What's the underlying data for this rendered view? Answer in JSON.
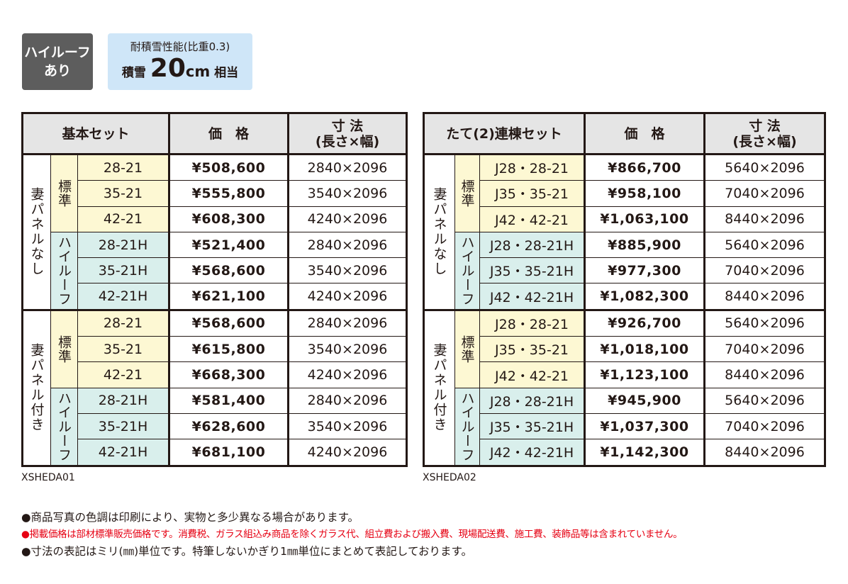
{
  "badges": {
    "roof": [
      "ハイルーフ",
      "あり"
    ],
    "snow": {
      "caption": "耐積雪性能(比重0.3)",
      "prefix": "積雪",
      "amount": "20",
      "unit": "cm",
      "suffix": "相当"
    }
  },
  "tables": [
    {
      "header": {
        "set": "基本セット",
        "price": "価　格",
        "size": "寸 法",
        "size_sub": "(長さ×幅)"
      },
      "code": "XSHEDA01",
      "groups": [
        {
          "label": "妻パネルなし",
          "subgroups": [
            {
              "label": "標準",
              "rows": [
                [
                  "28-21",
                  "¥508,600",
                  "2840×2096"
                ],
                [
                  "35-21",
                  "¥555,800",
                  "3540×2096"
                ],
                [
                  "42-21",
                  "¥608,300",
                  "4240×2096"
                ]
              ]
            },
            {
              "label": "ハイルーフ",
              "rows": [
                [
                  "28-21H",
                  "¥521,400",
                  "2840×2096"
                ],
                [
                  "35-21H",
                  "¥568,600",
                  "3540×2096"
                ],
                [
                  "42-21H",
                  "¥621,100",
                  "4240×2096"
                ]
              ]
            }
          ]
        },
        {
          "label": "妻パネル付き",
          "subgroups": [
            {
              "label": "標準",
              "rows": [
                [
                  "28-21",
                  "¥568,600",
                  "2840×2096"
                ],
                [
                  "35-21",
                  "¥615,800",
                  "3540×2096"
                ],
                [
                  "42-21",
                  "¥668,300",
                  "4240×2096"
                ]
              ]
            },
            {
              "label": "ハイルーフ",
              "rows": [
                [
                  "28-21H",
                  "¥581,400",
                  "2840×2096"
                ],
                [
                  "35-21H",
                  "¥628,600",
                  "3540×2096"
                ],
                [
                  "42-21H",
                  "¥681,100",
                  "4240×2096"
                ]
              ]
            }
          ]
        }
      ]
    },
    {
      "header": {
        "set": "たて(2)連棟セット",
        "price": "価　格",
        "size": "寸 法",
        "size_sub": "(長さ×幅)"
      },
      "code": "XSHEDA02",
      "groups": [
        {
          "label": "妻パネルなし",
          "subgroups": [
            {
              "label": "標準",
              "rows": [
                [
                  "J28・28-21",
                  "¥866,700",
                  "5640×2096"
                ],
                [
                  "J35・35-21",
                  "¥958,100",
                  "7040×2096"
                ],
                [
                  "J42・42-21",
                  "¥1,063,100",
                  "8440×2096"
                ]
              ]
            },
            {
              "label": "ハイルーフ",
              "rows": [
                [
                  "J28・28-21H",
                  "¥885,900",
                  "5640×2096"
                ],
                [
                  "J35・35-21H",
                  "¥977,300",
                  "7040×2096"
                ],
                [
                  "J42・42-21H",
                  "¥1,082,300",
                  "8440×2096"
                ]
              ]
            }
          ]
        },
        {
          "label": "妻パネル付き",
          "subgroups": [
            {
              "label": "標準",
              "rows": [
                [
                  "J28・28-21",
                  "¥926,700",
                  "5640×2096"
                ],
                [
                  "J35・35-21",
                  "¥1,018,100",
                  "7040×2096"
                ],
                [
                  "J42・42-21",
                  "¥1,123,100",
                  "8440×2096"
                ]
              ]
            },
            {
              "label": "ハイルーフ",
              "rows": [
                [
                  "J28・28-21H",
                  "¥945,900",
                  "5640×2096"
                ],
                [
                  "J35・35-21H",
                  "¥1,037,300",
                  "7040×2096"
                ],
                [
                  "J42・42-21H",
                  "¥1,142,300",
                  "8440×2096"
                ]
              ]
            }
          ]
        }
      ]
    }
  ],
  "notes": [
    "●商品写真の色調は印刷により、実物と多少異なる場合があります。",
    "●掲載価格は部材標準販売価格です。消費税、ガラス組込み商品を除くガラス代、組立費および搬入費、現場配送費、施工費、装飾品等は含まれていません。",
    "●寸法の表記はミリ(㎜)単位です。特筆しないかぎり1㎜単位にまとめて表記しております。"
  ]
}
